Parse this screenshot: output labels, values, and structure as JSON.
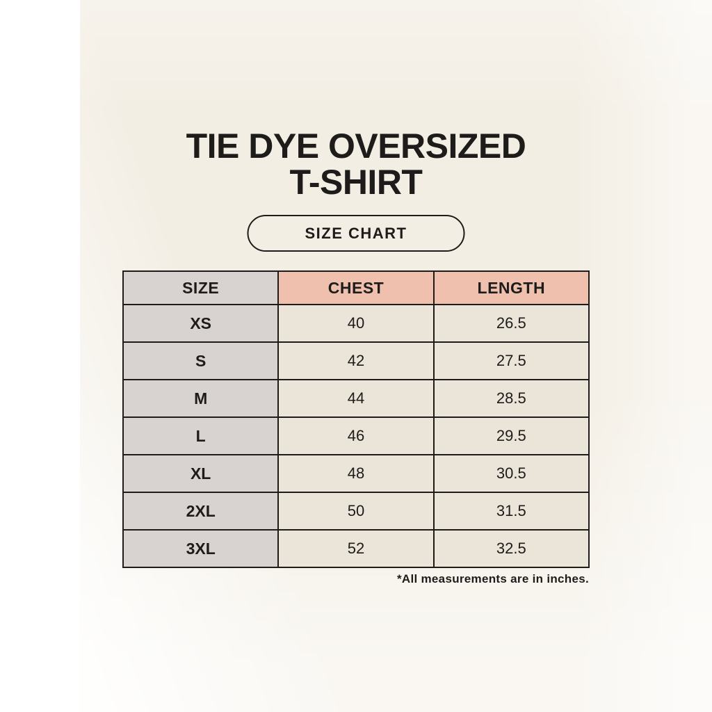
{
  "header": {
    "title_line1": "TIE DYE OVERSIZED",
    "title_line2": "T-SHIRT",
    "badge_label": "SIZE CHART"
  },
  "footnote": "*All measurements are in inches.",
  "colors": {
    "background_cream": "#f3eee4",
    "left_strip_white": "#ffffff",
    "header_pink": "#f0c0ae",
    "size_column_gray": "#d8d3d0",
    "cell_cream": "#eae4d9",
    "border_black": "#1d1c1a",
    "text_black": "#1d1c1a"
  },
  "chart_data": {
    "type": "table",
    "title": "TIE DYE OVERSIZED T-SHIRT SIZE CHART",
    "columns": [
      "SIZE",
      "CHEST",
      "LENGTH"
    ],
    "units": "inches",
    "rows": [
      [
        "XS",
        "40",
        "26.5"
      ],
      [
        "S",
        "42",
        "27.5"
      ],
      [
        "M",
        "44",
        "28.5"
      ],
      [
        "L",
        "46",
        "29.5"
      ],
      [
        "XL",
        "48",
        "30.5"
      ],
      [
        "2XL",
        "50",
        "31.5"
      ],
      [
        "3XL",
        "52",
        "32.5"
      ]
    ]
  }
}
